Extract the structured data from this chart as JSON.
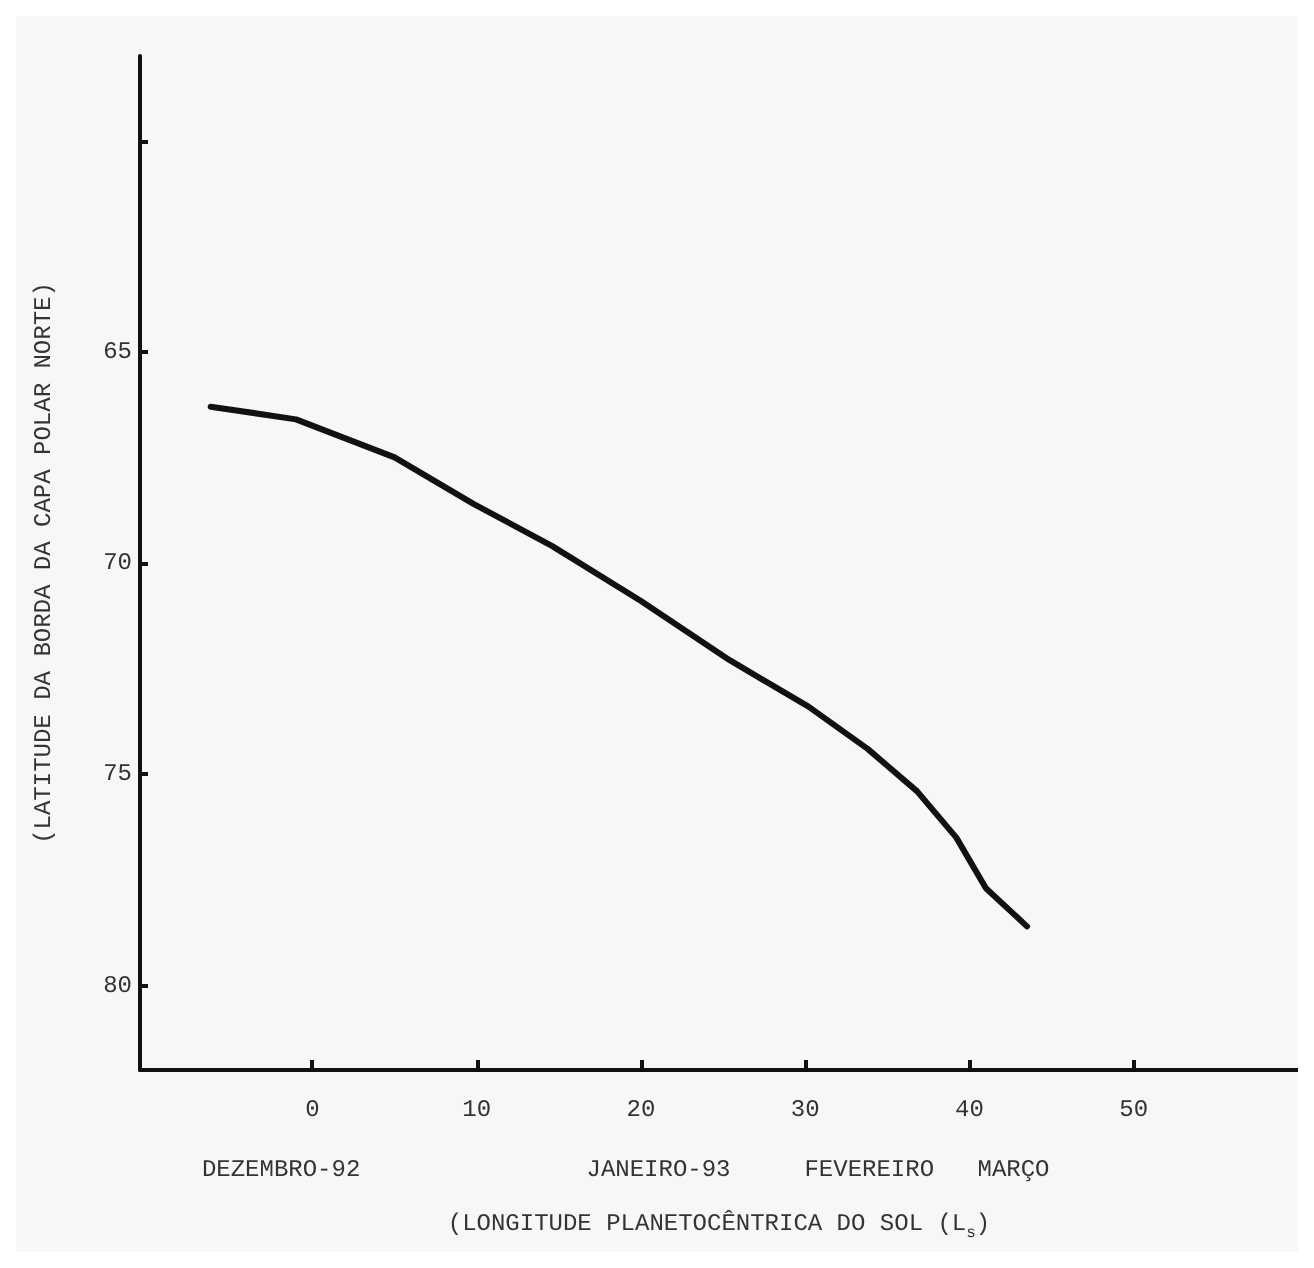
{
  "chart_data": {
    "type": "line",
    "xlabel": "(LONGITUDE PLANETOCÊNTRICA DO SOL (L$_{s}$)",
    "ylabel": "(LATITUDE DA BORDA DA CAPA POLAR NORTE)",
    "x": [
      -6.2,
      -1,
      5,
      9.8,
      14.6,
      20,
      25.4,
      30.2,
      33.8,
      36.8,
      39.2,
      41,
      43.5
    ],
    "series": [
      {
        "color": "#111111",
        "values": [
          66.3,
          66.6,
          67.5,
          68.6,
          69.6,
          70.9,
          72.3,
          73.4,
          74.4,
          75.4,
          76.5,
          77.7,
          78.6
        ]
      }
    ],
    "xlim": [
      -10.5,
      60
    ],
    "xticks": [
      0,
      10,
      20,
      30,
      40,
      50
    ],
    "ylim": [
      82,
      58
    ],
    "yticks": [
      {
        "value": 60,
        "label": null
      },
      65,
      70,
      75,
      80
    ],
    "grid": false,
    "marker": "none",
    "line_style": "solid",
    "annotations": [
      "DEZEMBRO-92",
      "JANEIRO-93",
      "FEVEREIRO",
      "MARÇO"
    ]
  }
}
